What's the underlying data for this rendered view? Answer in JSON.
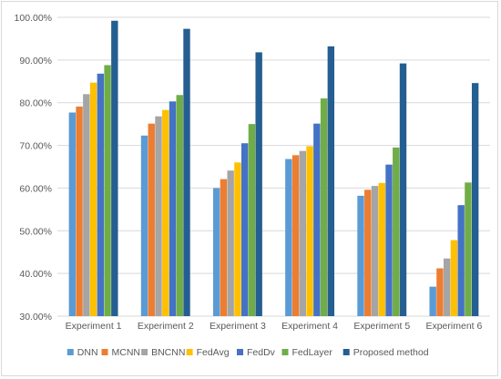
{
  "chart_data": {
    "type": "bar",
    "title": "",
    "xlabel": "",
    "ylabel": "",
    "ylim": [
      0.3,
      1.0
    ],
    "yticks": [
      "30.00%",
      "40.00%",
      "50.00%",
      "60.00%",
      "70.00%",
      "80.00%",
      "90.00%",
      "100.00%"
    ],
    "ytick_values": [
      0.3,
      0.4,
      0.5,
      0.6,
      0.7,
      0.8,
      0.9,
      1.0
    ],
    "grid": true,
    "legend_position": "bottom",
    "categories": [
      "Experiment 1",
      "Experiment 2",
      "Experiment 3",
      "Experiment 4",
      "Experiment 5",
      "Experiment 6"
    ],
    "series": [
      {
        "name": "DNN",
        "color": "#5b9bd5",
        "values": [
          0.777,
          0.723,
          0.6,
          0.668,
          0.582,
          0.369
        ]
      },
      {
        "name": "MCNN",
        "color": "#ed7d31",
        "values": [
          0.791,
          0.751,
          0.621,
          0.677,
          0.596,
          0.412
        ]
      },
      {
        "name": "BNCNN",
        "color": "#a5a5a5",
        "values": [
          0.82,
          0.768,
          0.641,
          0.687,
          0.605,
          0.435
        ]
      },
      {
        "name": "FedAvg",
        "color": "#ffc000",
        "values": [
          0.847,
          0.783,
          0.66,
          0.698,
          0.612,
          0.478
        ]
      },
      {
        "name": "FedDv",
        "color": "#4472c4",
        "values": [
          0.868,
          0.803,
          0.705,
          0.751,
          0.655,
          0.56
        ]
      },
      {
        "name": "FedLayer",
        "color": "#70ad47",
        "values": [
          0.888,
          0.818,
          0.75,
          0.81,
          0.695,
          0.613
        ]
      },
      {
        "name": "Proposed method",
        "color": "#255e91",
        "values": [
          0.992,
          0.973,
          0.918,
          0.932,
          0.892,
          0.846
        ]
      }
    ]
  }
}
